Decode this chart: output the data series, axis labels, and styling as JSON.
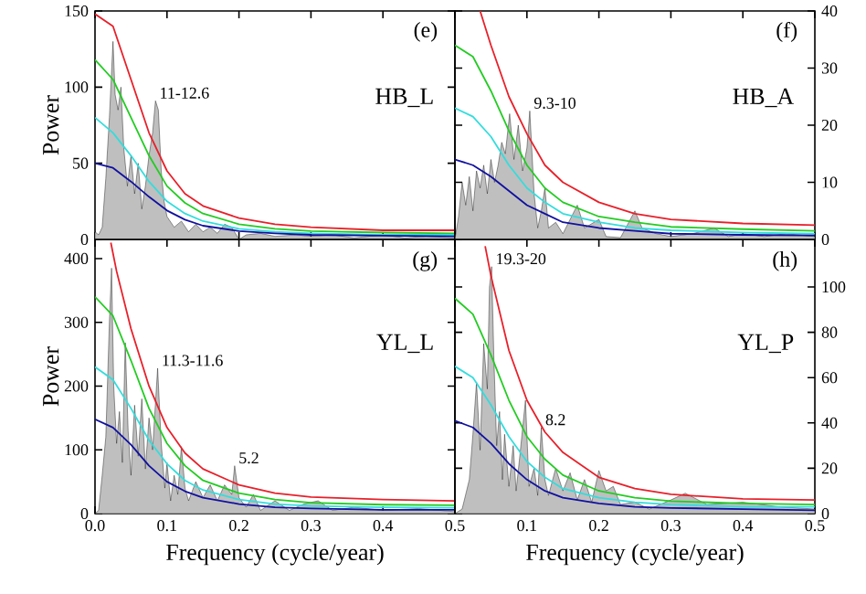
{
  "chart_data": [
    {
      "type": "area",
      "title": "(e)",
      "ylabel": "Power",
      "annotations": [
        "HB_L",
        {
          "text": "11-12.6",
          "x": 0.084,
          "y": 91
        }
      ],
      "xlim": [
        0,
        0.5
      ],
      "ylim": [
        0,
        150
      ],
      "xticks": [
        0,
        0.1,
        0.2,
        0.3,
        0.4,
        0.5
      ],
      "yticks": [
        0,
        50,
        100,
        150
      ],
      "tick_labels": "y",
      "series": [
        {
          "color": "#000000",
          "x": [
            0,
            0.005,
            0.01,
            0.015,
            0.02,
            0.025,
            0.028,
            0.032,
            0.036,
            0.04,
            0.045,
            0.05,
            0.055,
            0.06,
            0.065,
            0.07,
            0.075,
            0.08,
            0.084,
            0.088,
            0.092,
            0.096,
            0.1,
            0.11,
            0.12,
            0.13,
            0.14,
            0.15,
            0.16,
            0.17,
            0.18,
            0.19,
            0.2,
            0.21,
            0.23,
            0.25,
            0.28,
            0.3,
            0.33,
            0.36,
            0.4,
            0.43,
            0.46,
            0.5
          ],
          "values": [
            5,
            3,
            8,
            40,
            80,
            130,
            95,
            85,
            100,
            60,
            35,
            55,
            30,
            50,
            20,
            35,
            55,
            70,
            91,
            85,
            45,
            25,
            15,
            8,
            12,
            5,
            10,
            5,
            8,
            4,
            10,
            8,
            0,
            3,
            4,
            2,
            3,
            2,
            3,
            1,
            3,
            1,
            2,
            1
          ]
        },
        {
          "type": "line",
          "color": "#e8202a",
          "x": [
            0,
            0.025,
            0.05,
            0.075,
            0.1,
            0.125,
            0.15,
            0.2,
            0.25,
            0.3,
            0.4,
            0.5
          ],
          "values": [
            148,
            140,
            105,
            70,
            45,
            30,
            22,
            14,
            10,
            8,
            6,
            6
          ]
        },
        {
          "type": "line",
          "color": "#22cc22",
          "x": [
            0,
            0.025,
            0.05,
            0.075,
            0.1,
            0.125,
            0.15,
            0.2,
            0.25,
            0.3,
            0.4,
            0.5
          ],
          "values": [
            118,
            105,
            80,
            55,
            35,
            24,
            17,
            10,
            7,
            5.5,
            4.5,
            4
          ]
        },
        {
          "type": "line",
          "color": "#33dddd",
          "x": [
            0,
            0.025,
            0.05,
            0.075,
            0.1,
            0.125,
            0.15,
            0.2,
            0.25,
            0.3,
            0.4,
            0.5
          ],
          "values": [
            80,
            70,
            55,
            38,
            25,
            17,
            12,
            7,
            5,
            4,
            3,
            3
          ]
        },
        {
          "type": "line",
          "color": "#1010a0",
          "x": [
            0,
            0.025,
            0.05,
            0.075,
            0.1,
            0.125,
            0.15,
            0.2,
            0.25,
            0.3,
            0.4,
            0.5
          ],
          "values": [
            50,
            47,
            38,
            28,
            19,
            13,
            9,
            5.5,
            4,
            3,
            2.5,
            2
          ]
        }
      ]
    },
    {
      "type": "area",
      "title": "(f)",
      "annotations": [
        "HB_A",
        {
          "text": "9.3-10",
          "x": 0.104,
          "y": 22.5
        }
      ],
      "xlim": [
        0,
        0.5
      ],
      "ylim": [
        0,
        40
      ],
      "xticks": [
        0,
        0.1,
        0.2,
        0.3,
        0.4,
        0.5
      ],
      "yticks": [
        0,
        10,
        20,
        30,
        40
      ],
      "tick_labels": "y",
      "series": [
        {
          "color": "#000000",
          "x": [
            0,
            0.005,
            0.01,
            0.015,
            0.02,
            0.025,
            0.03,
            0.035,
            0.04,
            0.045,
            0.05,
            0.055,
            0.06,
            0.065,
            0.07,
            0.076,
            0.082,
            0.088,
            0.094,
            0.1,
            0.104,
            0.11,
            0.115,
            0.12,
            0.125,
            0.13,
            0.14,
            0.15,
            0.17,
            0.18,
            0.2,
            0.21,
            0.23,
            0.25,
            0.26,
            0.28,
            0.3,
            0.33,
            0.36,
            0.38,
            0.4,
            0.43,
            0.46,
            0.5
          ],
          "values": [
            0,
            4,
            10,
            6,
            11,
            5,
            12,
            9,
            13,
            8,
            14,
            10,
            13,
            17,
            15,
            22,
            14,
            20,
            12,
            16,
            22.5,
            8,
            2,
            5,
            9,
            2,
            3,
            1,
            6,
            2,
            3.5,
            0.5,
            0.3,
            5,
            2,
            1,
            0.5,
            1,
            2,
            0.5,
            1,
            0.5,
            1,
            0.5
          ]
        },
        {
          "type": "line",
          "color": "#e8202a",
          "x": [
            0.035,
            0.05,
            0.075,
            0.1,
            0.125,
            0.15,
            0.2,
            0.25,
            0.3,
            0.4,
            0.5
          ],
          "values": [
            40,
            34,
            25,
            18.5,
            13,
            10,
            6.5,
            4.5,
            3.5,
            2.8,
            2.5
          ]
        },
        {
          "type": "line",
          "color": "#22cc22",
          "x": [
            0,
            0.025,
            0.05,
            0.075,
            0.1,
            0.125,
            0.15,
            0.2,
            0.25,
            0.3,
            0.4,
            0.5
          ],
          "values": [
            34,
            32,
            26,
            19,
            13,
            9,
            6.5,
            4,
            3,
            2.2,
            1.8,
            1.5
          ]
        },
        {
          "type": "line",
          "color": "#33dddd",
          "x": [
            0,
            0.025,
            0.05,
            0.075,
            0.1,
            0.125,
            0.15,
            0.2,
            0.25,
            0.3,
            0.4,
            0.5
          ],
          "values": [
            23,
            21.5,
            18,
            13,
            9,
            6.5,
            4.5,
            3,
            2,
            1.6,
            1.2,
            1
          ]
        },
        {
          "type": "line",
          "color": "#1010a0",
          "x": [
            0,
            0.025,
            0.05,
            0.075,
            0.1,
            0.125,
            0.15,
            0.2,
            0.25,
            0.3,
            0.4,
            0.5
          ],
          "values": [
            14,
            13,
            11,
            8.5,
            6,
            4.5,
            3,
            2,
            1.5,
            1,
            0.8,
            0.7
          ]
        }
      ]
    },
    {
      "type": "area",
      "title": "(g)",
      "xlabel": "Frequency (cycle/year)",
      "ylabel": "Power",
      "annotations": [
        "YL_L",
        {
          "text": "11.3-11.6",
          "x": 0.087,
          "y": 228
        },
        {
          "text": "5.2",
          "x": 0.194,
          "y": 75
        }
      ],
      "xlim": [
        0,
        0.5
      ],
      "ylim": [
        0,
        430
      ],
      "xticks": [
        {
          "value": 0,
          "label": "0.0"
        },
        0.1,
        0.2,
        0.3,
        0.4,
        0.5
      ],
      "yticks": [
        0,
        100,
        200,
        300,
        400
      ],
      "series": [
        {
          "color": "#000000",
          "x": [
            0,
            0.005,
            0.01,
            0.015,
            0.02,
            0.023,
            0.026,
            0.03,
            0.034,
            0.038,
            0.042,
            0.046,
            0.05,
            0.055,
            0.06,
            0.065,
            0.07,
            0.075,
            0.08,
            0.087,
            0.092,
            0.097,
            0.1,
            0.105,
            0.11,
            0.115,
            0.12,
            0.125,
            0.13,
            0.14,
            0.15,
            0.16,
            0.17,
            0.18,
            0.19,
            0.194,
            0.2,
            0.21,
            0.22,
            0.23,
            0.25,
            0.27,
            0.29,
            0.31,
            0.33,
            0.36,
            0.4,
            0.45,
            0.5
          ],
          "values": [
            0,
            5,
            60,
            120,
            300,
            385,
            200,
            110,
            160,
            80,
            268,
            130,
            60,
            170,
            90,
            180,
            70,
            150,
            100,
            228,
            110,
            40,
            80,
            20,
            60,
            30,
            105,
            40,
            20,
            50,
            25,
            45,
            20,
            45,
            30,
            75,
            25,
            10,
            30,
            5,
            20,
            5,
            15,
            20,
            5,
            10,
            5,
            8,
            3
          ]
        },
        {
          "type": "line",
          "color": "#e8202a",
          "x": [
            0.022,
            0.03,
            0.05,
            0.075,
            0.1,
            0.125,
            0.15,
            0.2,
            0.25,
            0.3,
            0.4,
            0.5
          ],
          "values": [
            425,
            380,
            290,
            200,
            135,
            95,
            70,
            45,
            32,
            26,
            22,
            20
          ]
        },
        {
          "type": "line",
          "color": "#22cc22",
          "x": [
            0,
            0.025,
            0.05,
            0.075,
            0.1,
            0.125,
            0.15,
            0.2,
            0.25,
            0.3,
            0.4,
            0.5
          ],
          "values": [
            340,
            310,
            240,
            165,
            110,
            75,
            52,
            32,
            22,
            17,
            14,
            13
          ]
        },
        {
          "type": "line",
          "color": "#33dddd",
          "x": [
            0,
            0.025,
            0.05,
            0.075,
            0.1,
            0.125,
            0.15,
            0.2,
            0.25,
            0.3,
            0.4,
            0.5
          ],
          "values": [
            230,
            210,
            165,
            115,
            78,
            52,
            37,
            22,
            15,
            12,
            10,
            9
          ]
        },
        {
          "type": "line",
          "color": "#1010a0",
          "x": [
            0,
            0.025,
            0.05,
            0.075,
            0.1,
            0.125,
            0.15,
            0.2,
            0.25,
            0.3,
            0.4,
            0.5
          ],
          "values": [
            148,
            135,
            108,
            75,
            50,
            35,
            25,
            15,
            10,
            8,
            6,
            6
          ]
        }
      ]
    },
    {
      "type": "area",
      "title": "(h)",
      "xlabel": "Frequency (cycle/year)",
      "annotations": [
        "YL_P",
        {
          "text": "19.3-20",
          "x": 0.051,
          "y": 109
        },
        {
          "text": "8.2",
          "x": 0.12,
          "y": 38
        }
      ],
      "xlim": [
        0,
        0.5
      ],
      "ylim": [
        0,
        121
      ],
      "xticks": [
        {
          "value": 0,
          "label": null
        },
        0.1,
        0.2,
        0.3,
        0.4,
        0.5
      ],
      "yticks": [
        0,
        20,
        40,
        60,
        80,
        100
      ],
      "series": [
        {
          "color": "#000000",
          "x": [
            0,
            0.01,
            0.02,
            0.025,
            0.03,
            0.035,
            0.04,
            0.045,
            0.048,
            0.051,
            0.054,
            0.058,
            0.062,
            0.066,
            0.069,
            0.075,
            0.081,
            0.085,
            0.09,
            0.098,
            0.103,
            0.11,
            0.115,
            0.12,
            0.125,
            0.13,
            0.14,
            0.15,
            0.16,
            0.17,
            0.18,
            0.19,
            0.2,
            0.21,
            0.22,
            0.23,
            0.25,
            0.27,
            0.3,
            0.32,
            0.35,
            0.4,
            0.45,
            0.5
          ],
          "values": [
            0,
            2,
            15,
            35,
            58,
            28,
            75,
            55,
            100,
            109,
            70,
            30,
            45,
            15,
            35,
            12,
            30,
            10,
            25,
            50,
            12,
            20,
            8,
            38,
            15,
            8,
            20,
            10,
            18,
            6,
            15,
            5,
            19,
            10,
            12,
            4,
            5,
            2,
            6,
            9,
            4,
            5,
            3,
            2
          ]
        },
        {
          "type": "line",
          "color": "#e8202a",
          "x": [
            0.042,
            0.05,
            0.075,
            0.1,
            0.125,
            0.15,
            0.2,
            0.25,
            0.3,
            0.4,
            0.5
          ],
          "values": [
            118,
            105,
            72,
            50,
            36,
            27,
            16,
            11,
            8.5,
            6.5,
            6
          ]
        },
        {
          "type": "line",
          "color": "#22cc22",
          "x": [
            0,
            0.025,
            0.05,
            0.075,
            0.1,
            0.125,
            0.15,
            0.2,
            0.25,
            0.3,
            0.4,
            0.5
          ],
          "values": [
            95,
            88,
            70,
            50,
            34,
            24,
            17,
            10,
            7,
            5.5,
            4.5,
            4
          ]
        },
        {
          "type": "line",
          "color": "#33dddd",
          "x": [
            0,
            0.025,
            0.05,
            0.075,
            0.1,
            0.125,
            0.15,
            0.2,
            0.25,
            0.3,
            0.4,
            0.5
          ],
          "values": [
            65,
            60,
            48,
            34,
            23,
            16,
            11,
            7,
            5,
            4,
            3,
            3
          ]
        },
        {
          "type": "line",
          "color": "#1010a0",
          "x": [
            0,
            0.025,
            0.05,
            0.075,
            0.1,
            0.125,
            0.15,
            0.2,
            0.25,
            0.3,
            0.4,
            0.5
          ],
          "values": [
            41,
            38,
            31,
            22,
            15,
            10,
            7,
            4.5,
            3,
            2.5,
            2,
            1.5
          ]
        }
      ]
    }
  ]
}
